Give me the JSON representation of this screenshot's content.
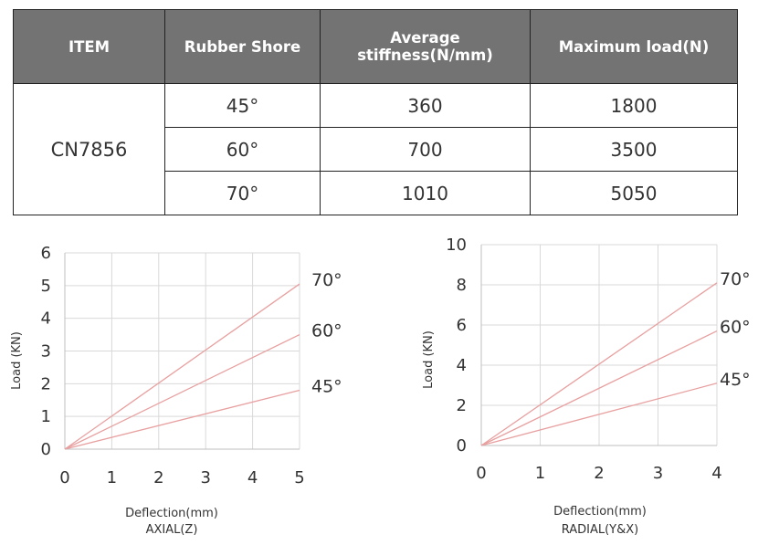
{
  "table": {
    "headers": [
      "ITEM",
      "Rubber Shore",
      "Average stiffness(N/mm)",
      "Maximum load(N)"
    ],
    "item": "CN7856",
    "rows": [
      {
        "shore": "45°",
        "stiffness": "360",
        "max_load": "1800"
      },
      {
        "shore": "60°",
        "stiffness": "700",
        "max_load": "3500"
      },
      {
        "shore": "70°",
        "stiffness": "1010",
        "max_load": "5050"
      }
    ]
  },
  "chart_data": [
    {
      "type": "line",
      "xlabel": "Deflection(mm)",
      "subtitle": "AXIAL(Z)",
      "ylabel": "Load (KN)",
      "xlim": [
        0,
        5
      ],
      "ylim": [
        0,
        6
      ],
      "x_ticks": [
        0,
        1,
        2,
        3,
        4,
        5
      ],
      "y_ticks": [
        0,
        1,
        2,
        3,
        4,
        5,
        6
      ],
      "grid": true,
      "series": [
        {
          "name": "70°",
          "x": [
            0,
            5
          ],
          "y": [
            0,
            5.05
          ]
        },
        {
          "name": "60°",
          "x": [
            0,
            5
          ],
          "y": [
            0,
            3.5
          ]
        },
        {
          "name": "45°",
          "x": [
            0,
            5
          ],
          "y": [
            0,
            1.8
          ]
        }
      ],
      "line_color": "#e8a0a0"
    },
    {
      "type": "line",
      "xlabel": "Deflection(mm)",
      "subtitle": "RADIAL(Y&X)",
      "ylabel": "Load (KN)",
      "xlim": [
        0,
        4
      ],
      "ylim": [
        0,
        10
      ],
      "x_ticks": [
        0,
        1,
        2,
        3,
        4
      ],
      "y_ticks": [
        0,
        2,
        4,
        6,
        8,
        10
      ],
      "grid": true,
      "series": [
        {
          "name": "70°",
          "x": [
            0,
            4
          ],
          "y": [
            0,
            8.1
          ]
        },
        {
          "name": "60°",
          "x": [
            0,
            4
          ],
          "y": [
            0,
            5.7
          ]
        },
        {
          "name": "45°",
          "x": [
            0,
            4
          ],
          "y": [
            0,
            3.1
          ]
        }
      ],
      "line_color": "#e8a0a0"
    }
  ]
}
